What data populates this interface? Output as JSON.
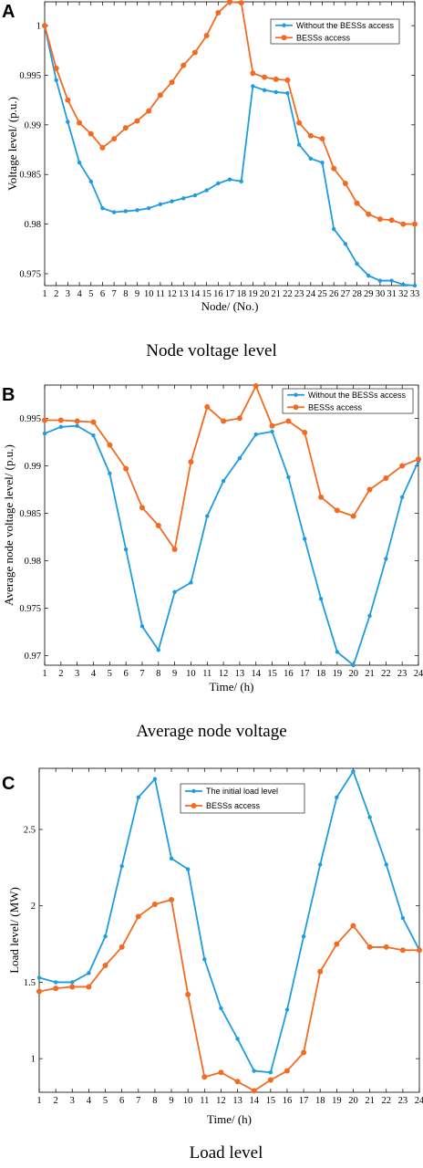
{
  "chart_data": [
    {
      "panel": "A",
      "type": "line",
      "caption": "Node voltage level",
      "xlabel": "Node/ (No.)",
      "ylabel": "Voltage level/ (p.u.)",
      "x": [
        1,
        2,
        3,
        4,
        5,
        6,
        7,
        8,
        9,
        10,
        11,
        12,
        13,
        14,
        15,
        16,
        17,
        18,
        19,
        20,
        21,
        22,
        23,
        24,
        25,
        26,
        27,
        28,
        29,
        30,
        31,
        32,
        33
      ],
      "xlim": [
        1,
        33
      ],
      "ylim": [
        0.9738,
        1.0024
      ],
      "yticks": [
        0.975,
        0.98,
        0.985,
        0.99,
        0.995,
        1
      ],
      "ytick_labels": [
        "0.975",
        "0.98",
        "0.985",
        "0.99",
        "0.995",
        "1"
      ],
      "legend_position": "top-right",
      "series": [
        {
          "name": "Without the BESSs access",
          "color": "#1f9be0",
          "marker_size": 2.2,
          "values": [
            1.0,
            0.9945,
            0.9903,
            0.9862,
            0.9843,
            0.9816,
            0.9812,
            0.9813,
            0.9814,
            0.9816,
            0.982,
            0.9823,
            0.9826,
            0.9829,
            0.9834,
            0.9841,
            0.9845,
            0.9843,
            0.9939,
            0.9935,
            0.9933,
            0.9932,
            0.988,
            0.9866,
            0.9862,
            0.9795,
            0.978,
            0.976,
            0.9748,
            0.9743,
            0.9743,
            0.9739,
            0.9738
          ]
        },
        {
          "name": "BESSs access",
          "color": "#f26b22",
          "marker_size": 3,
          "values": [
            1.0,
            0.9957,
            0.9925,
            0.9902,
            0.9891,
            0.9877,
            0.9886,
            0.9897,
            0.9904,
            0.9914,
            0.993,
            0.9943,
            0.996,
            0.9973,
            0.999,
            1.0013,
            1.0024,
            1.0023,
            0.9952,
            0.9948,
            0.9946,
            0.9945,
            0.9902,
            0.9889,
            0.9886,
            0.9856,
            0.9841,
            0.9821,
            0.981,
            0.9805,
            0.9804,
            0.98,
            0.98
          ]
        }
      ]
    },
    {
      "panel": "B",
      "type": "line",
      "caption": "Average node voltage",
      "xlabel": "Time/ (h)",
      "ylabel": "Average node voltage level/ (p.u.)",
      "x": [
        1,
        2,
        3,
        4,
        5,
        6,
        7,
        8,
        9,
        10,
        11,
        12,
        13,
        14,
        15,
        16,
        17,
        18,
        19,
        20,
        21,
        22,
        23,
        24
      ],
      "xlim": [
        1,
        24
      ],
      "ylim": [
        0.969,
        0.9985
      ],
      "yticks": [
        0.97,
        0.975,
        0.98,
        0.985,
        0.99,
        0.995
      ],
      "ytick_labels": [
        "0.97",
        "0.975",
        "0.98",
        "0.985",
        "0.99",
        "0.995"
      ],
      "legend_position": "top-right",
      "series": [
        {
          "name": "Without the BESSs access",
          "color": "#1f9be0",
          "marker_size": 2.2,
          "values": [
            0.9934,
            0.9941,
            0.9942,
            0.9932,
            0.9892,
            0.9812,
            0.9731,
            0.9706,
            0.9767,
            0.9777,
            0.9847,
            0.9884,
            0.9908,
            0.9933,
            0.9936,
            0.9888,
            0.9823,
            0.976,
            0.9704,
            0.969,
            0.9742,
            0.9802,
            0.9867,
            0.9905
          ]
        },
        {
          "name": "BESSs access",
          "color": "#f26b22",
          "marker_size": 3,
          "values": [
            0.9948,
            0.9948,
            0.9947,
            0.9946,
            0.9922,
            0.9897,
            0.9856,
            0.9837,
            0.9812,
            0.9904,
            0.9962,
            0.9947,
            0.995,
            0.9984,
            0.9942,
            0.9947,
            0.9935,
            0.9867,
            0.9853,
            0.9847,
            0.9875,
            0.9887,
            0.99,
            0.9907
          ]
        }
      ]
    },
    {
      "panel": "C",
      "type": "line",
      "caption": "Load level",
      "xlabel": "Time/ (h)",
      "ylabel": "Load level/ (MW)",
      "x": [
        1,
        2,
        3,
        4,
        5,
        6,
        7,
        8,
        9,
        10,
        11,
        12,
        13,
        14,
        15,
        16,
        17,
        18,
        19,
        20,
        21,
        22,
        23,
        24
      ],
      "xlim": [
        1,
        24
      ],
      "ylim": [
        0.78,
        2.9
      ],
      "yticks": [
        1,
        1.5,
        2,
        2.5
      ],
      "ytick_labels": [
        "1",
        "1.5",
        "2",
        "2.5"
      ],
      "legend_position": "top-left",
      "series": [
        {
          "name": "The initial load level",
          "color": "#1f9be0",
          "marker_size": 2.2,
          "values": [
            1.53,
            1.5,
            1.5,
            1.56,
            1.8,
            2.26,
            2.71,
            2.83,
            2.31,
            2.24,
            1.65,
            1.33,
            1.13,
            0.92,
            0.91,
            1.32,
            1.8,
            2.27,
            2.71,
            2.88,
            2.58,
            2.27,
            1.92,
            1.71
          ]
        },
        {
          "name": "BESSs access",
          "color": "#f26b22",
          "marker_size": 3,
          "values": [
            1.44,
            1.46,
            1.47,
            1.47,
            1.61,
            1.73,
            1.93,
            2.01,
            2.04,
            1.42,
            0.88,
            0.91,
            0.85,
            0.79,
            0.86,
            0.92,
            1.04,
            1.57,
            1.75,
            1.87,
            1.73,
            1.73,
            1.71,
            1.71
          ]
        }
      ]
    }
  ]
}
